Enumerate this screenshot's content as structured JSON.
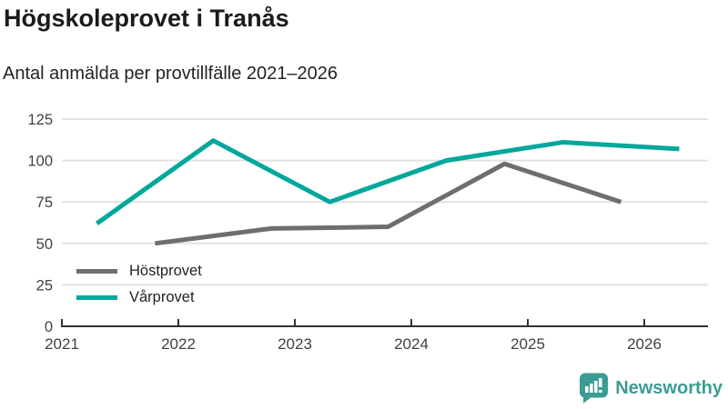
{
  "header": {
    "title": "Högskoleprovet i Tranås",
    "subtitle": "Antal anmälda per provtillfälle 2021–2026"
  },
  "chart_data": {
    "type": "line",
    "title": "Högskoleprovet i Tranås",
    "subtitle": "Antal anmälda per provtillfälle 2021–2026",
    "xlabel": "",
    "ylabel": "",
    "x_ticks": [
      2021,
      2022,
      2023,
      2024,
      2025,
      2026
    ],
    "y_ticks": [
      0,
      25,
      50,
      75,
      100,
      125
    ],
    "ylim": [
      0,
      125
    ],
    "xlim": [
      2021,
      2026.55
    ],
    "grid": "horizontal",
    "gridline_color": "#e2e2e2",
    "axis_color": "#333333",
    "tick_label_color": "#3f413f",
    "legend_position": "inside-bottom-left",
    "series": [
      {
        "name": "Höstprovet",
        "color": "#6e6e72",
        "x": [
          2021.8,
          2022.8,
          2023.8,
          2024.8,
          2025.8
        ],
        "values": [
          50,
          59,
          60,
          98,
          75
        ]
      },
      {
        "name": "Vårprovet",
        "color": "#00a79b",
        "x": [
          2021.3,
          2022.3,
          2023.3,
          2024.3,
          2025.3,
          2026.3
        ],
        "values": [
          62,
          112,
          75,
          100,
          111,
          107
        ]
      }
    ]
  },
  "footer": {
    "brand": "Newsworthy",
    "brand_color": "#3a9c93"
  }
}
